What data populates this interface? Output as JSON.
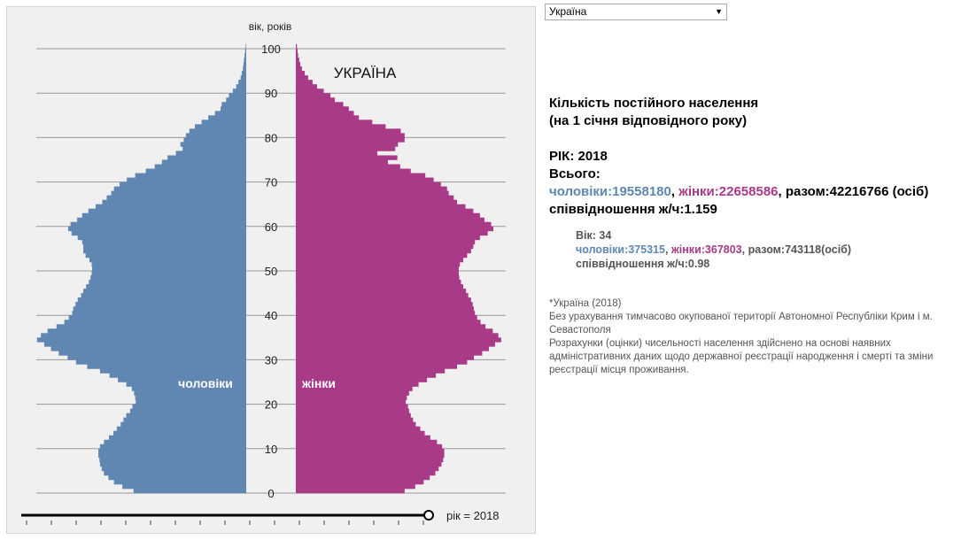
{
  "selector": {
    "value": "Україна"
  },
  "stats": {
    "heading_line1": "Кількість постійного населення",
    "heading_line2": "(на 1 січня відповідного року)",
    "year_line": "РІК: 2018",
    "total_label": "Всього:",
    "male_text": "чоловіки:19558180",
    "female_text": "жінки:22658586",
    "sum_text": ", разом:42216766 (осіб)",
    "ratio_text": "співвідношення ж/ч:1.159"
  },
  "age_stats": {
    "age_line": "Вік: 34",
    "male_text": "чоловіки:375315",
    "female_text": "жінки:367803",
    "sum_text": ", разом:743118(осіб)",
    "ratio_text": "співвідношення ж/ч:0.98"
  },
  "notes": {
    "line1": "*Україна (2018)",
    "line2": "Без урахування тимчасово окупованої території Автономної Республіки Крим і м. Севастополя",
    "line3": "Розрахунки (оцінки) чисельності населення здійснено на основі наявних адміністративних даних щодо державної реєстрації народження і смерті та зміни реєстрації місця проживання."
  },
  "chart_data": {
    "type": "bar",
    "orientation": "horizontal-pyramid",
    "title": "УКРАЇНА",
    "ylabel": "вік, років",
    "y_ticks": [
      0,
      10,
      20,
      30,
      40,
      50,
      60,
      70,
      80,
      90,
      100
    ],
    "male_label": "чоловіки",
    "female_label": "жінки",
    "slider_label": "рік = 2018",
    "colors": {
      "male": "#5f87b1",
      "female": "#a83a88",
      "grid": "#999999",
      "panel": "#f0f0f0"
    },
    "ages": [
      0,
      1,
      2,
      3,
      4,
      5,
      6,
      7,
      8,
      9,
      10,
      11,
      12,
      13,
      14,
      15,
      16,
      17,
      18,
      19,
      20,
      21,
      22,
      23,
      24,
      25,
      26,
      27,
      28,
      29,
      30,
      31,
      32,
      33,
      34,
      35,
      36,
      37,
      38,
      39,
      40,
      41,
      42,
      43,
      44,
      45,
      46,
      47,
      48,
      49,
      50,
      51,
      52,
      53,
      54,
      55,
      56,
      57,
      58,
      59,
      60,
      61,
      62,
      63,
      64,
      65,
      66,
      67,
      68,
      69,
      70,
      71,
      72,
      73,
      74,
      75,
      76,
      77,
      78,
      79,
      80,
      81,
      82,
      83,
      84,
      85,
      86,
      87,
      88,
      89,
      90,
      91,
      92,
      93,
      94,
      95,
      96,
      97,
      98,
      99,
      100
    ],
    "male": [
      202,
      222,
      237,
      247,
      255,
      259,
      262,
      263,
      265,
      265,
      262,
      255,
      246,
      238,
      232,
      225,
      220,
      215,
      208,
      204,
      198,
      199,
      201,
      205,
      215,
      230,
      245,
      262,
      285,
      305,
      320,
      336,
      350,
      362,
      375,
      368,
      356,
      340,
      326,
      318,
      312,
      310,
      306,
      302,
      296,
      292,
      287,
      282,
      279,
      277,
      276,
      277,
      281,
      288,
      292,
      292,
      294,
      302,
      313,
      319,
      315,
      303,
      294,
      283,
      270,
      258,
      250,
      242,
      237,
      227,
      214,
      199,
      180,
      164,
      151,
      141,
      126,
      114,
      118,
      112,
      108,
      102,
      92,
      80,
      68,
      56,
      46,
      44,
      36,
      31,
      24,
      18,
      14,
      10,
      8,
      6,
      5,
      4,
      3,
      2,
      1
    ],
    "female": [
      195,
      214,
      229,
      240,
      250,
      256,
      261,
      264,
      266,
      266,
      262,
      253,
      241,
      231,
      223,
      215,
      210,
      206,
      203,
      201,
      197,
      199,
      203,
      209,
      220,
      235,
      251,
      267,
      289,
      307,
      319,
      334,
      346,
      357,
      368,
      363,
      353,
      340,
      331,
      325,
      321,
      319,
      317,
      314,
      309,
      305,
      300,
      296,
      293,
      292,
      292,
      294,
      300,
      307,
      314,
      318,
      321,
      330,
      344,
      354,
      350,
      338,
      330,
      318,
      304,
      289,
      283,
      274,
      271,
      260,
      247,
      232,
      206,
      187,
      165,
      182,
      146,
      178,
      183,
      195,
      195,
      188,
      161,
      137,
      113,
      104,
      95,
      85,
      70,
      62,
      50,
      38,
      30,
      22,
      16,
      11,
      8,
      6,
      4,
      3,
      2
    ]
  }
}
